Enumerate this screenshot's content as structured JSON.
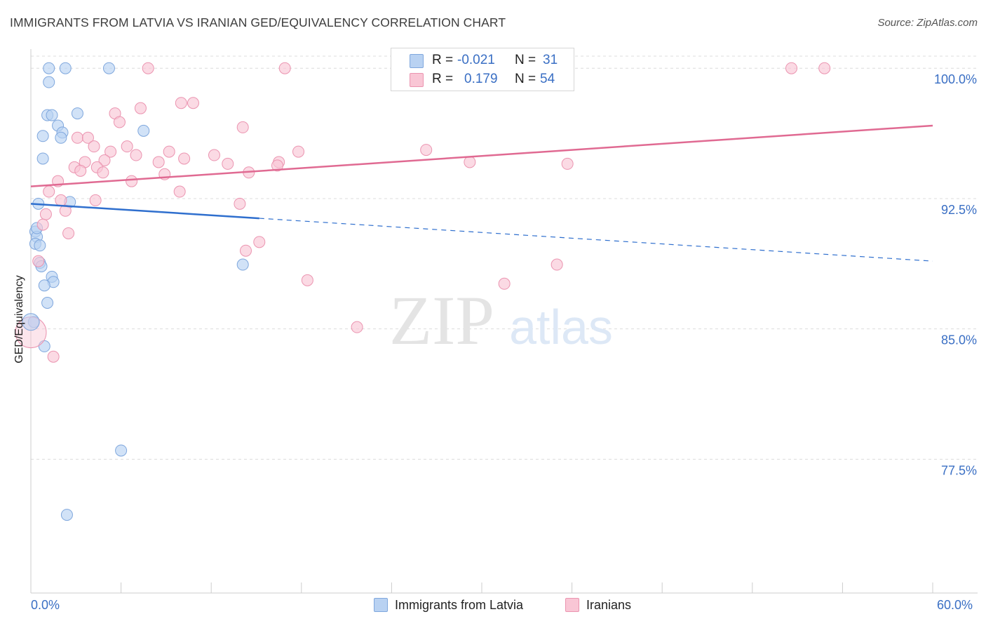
{
  "header": {
    "title": "IMMIGRANTS FROM LATVIA VS IRANIAN GED/EQUIVALENCY CORRELATION CHART",
    "source": "Source: ZipAtlas.com"
  },
  "watermark": {
    "zip": "ZIP",
    "atlas": "atlas"
  },
  "legend_top": {
    "rows": [
      {
        "r_label": "R =",
        "r_value": "-0.021",
        "n_label": "N =",
        "n_value": "31"
      },
      {
        "r_label": "R =",
        "r_value": "0.179",
        "n_label": "N =",
        "n_value": "54"
      }
    ]
  },
  "legend_bottom": {
    "items": [
      {
        "label": "Immigrants from Latvia"
      },
      {
        "label": "Iranians"
      }
    ]
  },
  "colors": {
    "blue_fill": "#b9d2f2",
    "blue_stroke": "#7fa7dd",
    "blue_line": "#2f6fce",
    "pink_fill": "#f9c6d5",
    "pink_stroke": "#eb94b0",
    "pink_line": "#e06a92",
    "tick_text": "#3a6fc4",
    "grid": "#dcdcdc"
  },
  "chart_data": {
    "type": "scatter",
    "title": "IMMIGRANTS FROM LATVIA VS IRANIAN GED/EQUIVALENCY CORRELATION CHART",
    "xlabel": "",
    "ylabel": "GED/Equivalency",
    "xlim": [
      0,
      60
    ],
    "ylim": [
      69.8,
      101.1
    ],
    "x_tick_labels": [
      "0.0%",
      "60.0%"
    ],
    "y_ticks": [
      {
        "value": 100.0,
        "label": "100.0%"
      },
      {
        "value": 92.5,
        "label": "92.5%"
      },
      {
        "value": 85.0,
        "label": "85.0%"
      },
      {
        "value": 77.5,
        "label": "77.5%"
      }
    ],
    "series": [
      {
        "name": "Immigrants from Latvia",
        "color": "blue",
        "points": [
          [
            1.2,
            100.0
          ],
          [
            2.3,
            100.0
          ],
          [
            5.2,
            100.0
          ],
          [
            1.2,
            99.2
          ],
          [
            3.1,
            97.4
          ],
          [
            1.1,
            97.3
          ],
          [
            1.4,
            97.3
          ],
          [
            1.8,
            96.7
          ],
          [
            7.5,
            96.4
          ],
          [
            2.1,
            96.3
          ],
          [
            0.8,
            96.1
          ],
          [
            2.0,
            96.0
          ],
          [
            0.8,
            94.8
          ],
          [
            0.5,
            92.2
          ],
          [
            2.6,
            92.3
          ],
          [
            0.3,
            90.6
          ],
          [
            0.4,
            90.3
          ],
          [
            0.3,
            89.9
          ],
          [
            0.6,
            89.8
          ],
          [
            0.6,
            88.8
          ],
          [
            0.7,
            88.6
          ],
          [
            14.1,
            88.7
          ],
          [
            1.4,
            88.0
          ],
          [
            1.5,
            87.7
          ],
          [
            0.9,
            87.5
          ],
          [
            1.1,
            86.5
          ],
          [
            0.2,
            85.4
          ],
          [
            0.9,
            84.0
          ],
          [
            6.0,
            78.0
          ],
          [
            2.4,
            74.3
          ],
          [
            0.4,
            90.8
          ]
        ],
        "trend": {
          "x": [
            0,
            60
          ],
          "y": [
            92.2,
            88.9
          ],
          "solid_until_x": 15.2
        }
      },
      {
        "name": "Iranians",
        "color": "pink",
        "points": [
          [
            7.8,
            100.0
          ],
          [
            16.9,
            100.0
          ],
          [
            50.6,
            100.0
          ],
          [
            52.8,
            100.0
          ],
          [
            10.0,
            98.0
          ],
          [
            10.8,
            98.0
          ],
          [
            7.3,
            97.7
          ],
          [
            5.6,
            97.4
          ],
          [
            5.9,
            96.9
          ],
          [
            14.1,
            96.6
          ],
          [
            3.1,
            96.0
          ],
          [
            3.8,
            96.0
          ],
          [
            4.2,
            95.5
          ],
          [
            6.4,
            95.5
          ],
          [
            26.3,
            95.3
          ],
          [
            17.8,
            95.2
          ],
          [
            5.3,
            95.2
          ],
          [
            9.2,
            95.2
          ],
          [
            7.0,
            95.0
          ],
          [
            12.2,
            95.0
          ],
          [
            10.2,
            94.8
          ],
          [
            4.9,
            94.7
          ],
          [
            3.6,
            94.6
          ],
          [
            8.5,
            94.6
          ],
          [
            13.1,
            94.5
          ],
          [
            16.5,
            94.6
          ],
          [
            29.2,
            94.6
          ],
          [
            35.7,
            94.5
          ],
          [
            2.9,
            94.3
          ],
          [
            4.4,
            94.3
          ],
          [
            3.3,
            94.1
          ],
          [
            4.8,
            94.0
          ],
          [
            8.9,
            93.9
          ],
          [
            14.5,
            94.0
          ],
          [
            16.4,
            94.4
          ],
          [
            1.8,
            93.5
          ],
          [
            6.7,
            93.5
          ],
          [
            1.2,
            92.9
          ],
          [
            9.9,
            92.9
          ],
          [
            2.0,
            92.4
          ],
          [
            4.3,
            92.4
          ],
          [
            13.9,
            92.2
          ],
          [
            2.3,
            91.8
          ],
          [
            1.0,
            91.6
          ],
          [
            0.8,
            91.0
          ],
          [
            2.5,
            90.5
          ],
          [
            15.2,
            90.0
          ],
          [
            14.3,
            89.5
          ],
          [
            0.5,
            88.9
          ],
          [
            35.0,
            88.7
          ],
          [
            18.4,
            87.8
          ],
          [
            31.5,
            87.6
          ],
          [
            21.7,
            85.1
          ],
          [
            1.5,
            83.4
          ]
        ],
        "trend": {
          "x": [
            0,
            60
          ],
          "y": [
            93.2,
            96.7
          ]
        }
      }
    ]
  }
}
